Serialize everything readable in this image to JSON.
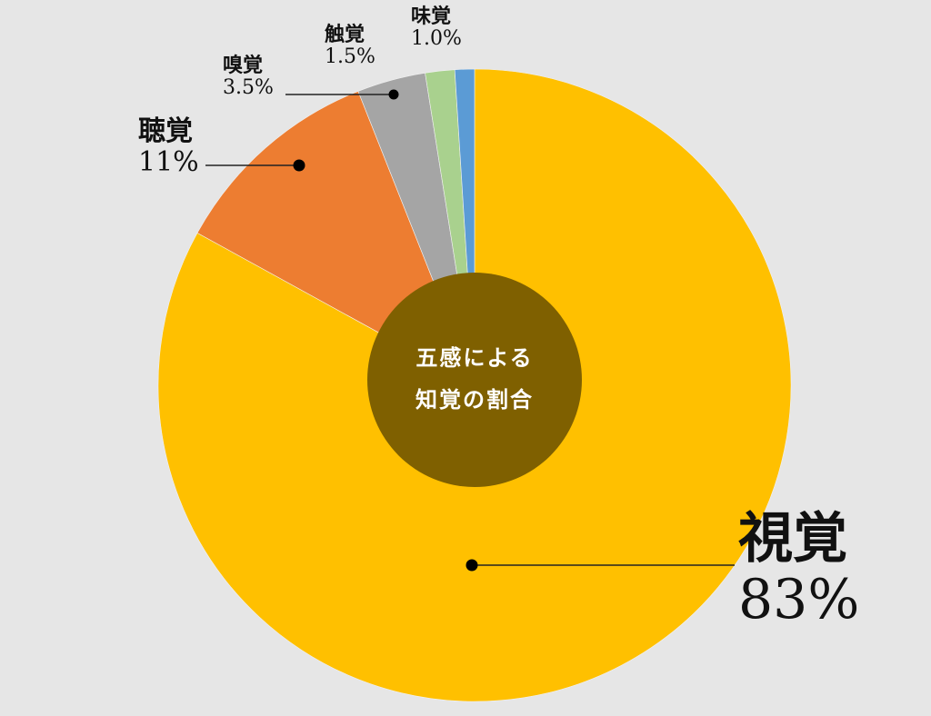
{
  "chart_data": {
    "type": "pie",
    "variant": "donut",
    "title": "五感による知覚の割合",
    "title_lines": [
      "五感による",
      "知覚の割合"
    ],
    "categories": [
      "視覚",
      "聴覚",
      "嗅覚",
      "触覚",
      "味覚"
    ],
    "values": [
      83,
      11,
      3.5,
      1.5,
      1.0
    ],
    "value_labels": [
      "83%",
      "11%",
      "3.5%",
      "1.5%",
      "1.0%"
    ],
    "colors": [
      "#FFC000",
      "#ED7D31",
      "#A5A5A5",
      "#A9D18E",
      "#5B9BD5"
    ],
    "start_angle_deg": 0,
    "direction": "clockwise",
    "legend": "none",
    "data_labels": "outside with leader lines",
    "center_hole_color": "#7F6000"
  },
  "labels": {
    "sight": {
      "name": "視覚",
      "pct": "83%"
    },
    "hearing": {
      "name": "聴覚",
      "pct": "11%"
    },
    "smell": {
      "name": "嗅覚",
      "pct": "3.5%"
    },
    "touch": {
      "name": "触覚",
      "pct": "1.5%"
    },
    "taste": {
      "name": "味覚",
      "pct": "1.0%"
    }
  },
  "center": {
    "line1": "五感による",
    "line2": "知覚の割合"
  },
  "colors": {
    "background": "#e6e6e6",
    "leader": "#222222"
  }
}
